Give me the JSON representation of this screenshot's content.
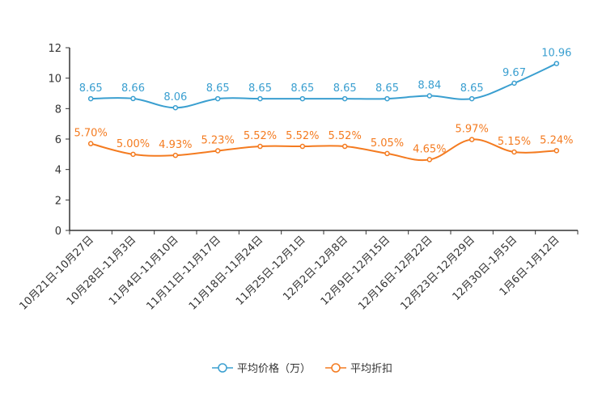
{
  "chart_data": {
    "type": "line",
    "categories": [
      "10月21日-10月27日",
      "10月28日-11月3日",
      "11月4日-11月10日",
      "11月11日-11月17日",
      "11月18日-11月24日",
      "11月25日-12月1日",
      "12月2日-12月8日",
      "12月9日-12月15日",
      "12月16日-12月22日",
      "12月23日-12月29日",
      "12月30日-1月5日",
      "1月6日-1月12日"
    ],
    "ylim": [
      0,
      12
    ],
    "yticks": [
      0,
      2,
      4,
      6,
      8,
      10,
      12
    ],
    "series": [
      {
        "name": "平均价格（万）",
        "color": "#3a9fd0",
        "values": [
          8.65,
          8.66,
          8.06,
          8.65,
          8.65,
          8.65,
          8.65,
          8.65,
          8.84,
          8.65,
          9.67,
          10.96
        ],
        "labels": [
          "8.65",
          "8.66",
          "8.06",
          "8.65",
          "8.65",
          "8.65",
          "8.65",
          "8.65",
          "8.84",
          "8.65",
          "9.67",
          "10.96"
        ]
      },
      {
        "name": "平均折扣",
        "color": "#f47b20",
        "values": [
          5.7,
          5.0,
          4.93,
          5.23,
          5.52,
          5.52,
          5.52,
          5.05,
          4.65,
          5.97,
          5.15,
          5.24
        ],
        "labels": [
          "5.70%",
          "5.00%",
          "4.93%",
          "5.23%",
          "5.52%",
          "5.52%",
          "5.52%",
          "5.05%",
          "4.65%",
          "5.97%",
          "5.15%",
          "5.24%"
        ]
      }
    ],
    "legend_position": "bottom-center"
  }
}
